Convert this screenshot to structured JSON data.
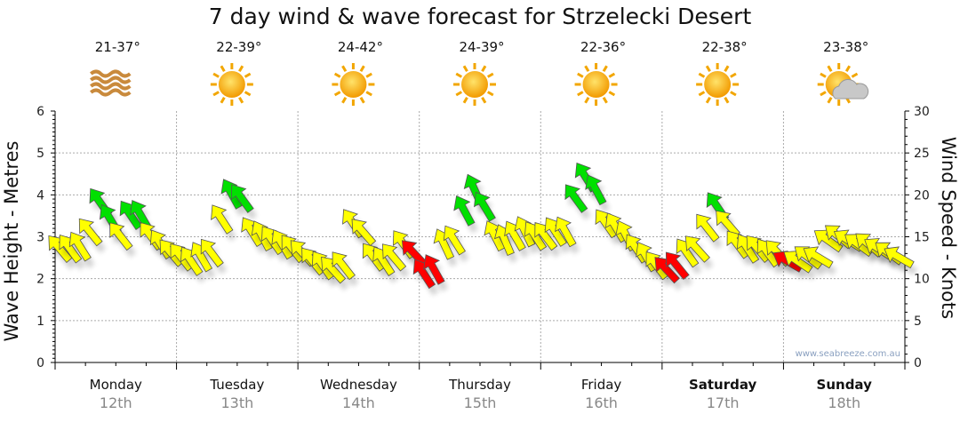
{
  "chart_data": {
    "type": "scatter",
    "title": "7 day wind & wave forecast for Strzelecki Desert",
    "ylabel": "Wave Height - Metres",
    "y2label": "Wind Speed - Knots",
    "ylim": [
      0,
      6
    ],
    "y2lim": [
      0,
      30
    ],
    "yticks": [
      "0",
      "1",
      "2",
      "3",
      "4",
      "5",
      "6"
    ],
    "y2ticks": [
      "0",
      "5",
      "10",
      "15",
      "20",
      "25",
      "30"
    ],
    "grid": true,
    "watermark": "www.seabreeze.com.au",
    "colors": {
      "y": "#ffff00",
      "g": "#00e000",
      "r": "#ff0000"
    },
    "days": [
      {
        "name": "Monday",
        "date": "12th",
        "bold": false,
        "temp": "21-37°",
        "icon": "haze-icon",
        "wave": [
          2.7,
          2.7,
          2.75,
          3.1,
          3.8,
          3.4,
          3.0,
          3.5,
          3.5,
          3.0,
          2.8,
          2.6
        ],
        "rating": "yyyyggyggyyy",
        "dir": -35
      },
      {
        "name": "Tuesday",
        "date": "13th",
        "bold": false,
        "temp": "22-39°",
        "icon": "sun-icon",
        "wave": [
          2.5,
          2.4,
          2.5,
          2.6,
          3.4,
          4.0,
          3.9,
          3.1,
          3.0,
          2.9,
          2.8,
          2.7
        ],
        "rating": "yyyyyggyyyyy",
        "dir": -33
      },
      {
        "name": "Wednesday",
        "date": "14th",
        "bold": false,
        "temp": "24-42°",
        "icon": "sun-icon",
        "wave": [
          2.6,
          2.4,
          2.3,
          2.2,
          2.3,
          3.3,
          3.1,
          2.5,
          2.4,
          2.5,
          2.8,
          2.6
        ],
        "rating": "yyyyyyyyyyyr",
        "dir": -38
      },
      {
        "name": "Thursday",
        "date": "15th",
        "bold": false,
        "temp": "24-39°",
        "icon": "sun-icon",
        "wave": [
          2.1,
          2.2,
          2.8,
          2.9,
          3.6,
          4.1,
          3.7,
          3.0,
          2.9,
          3.0,
          3.1,
          3.0
        ],
        "rating": "rryygggyyyyy",
        "dir": -28
      },
      {
        "name": "Friday",
        "date": "16th",
        "bold": false,
        "temp": "22-36°",
        "icon": "sun-icon",
        "wave": [
          3.0,
          3.1,
          3.1,
          3.9,
          4.4,
          4.1,
          3.3,
          3.2,
          3.0,
          2.7,
          2.5,
          2.3
        ],
        "rating": "yyygggyyyyyy",
        "dir": -32
      },
      {
        "name": "Saturday",
        "date": "17th",
        "bold": true,
        "temp": "22-38°",
        "icon": "sun-icon",
        "wave": [
          2.2,
          2.3,
          2.6,
          2.7,
          3.2,
          3.7,
          3.3,
          2.8,
          2.7,
          2.7,
          2.6,
          2.6
        ],
        "rating": "rryyygyyyyyy",
        "dir": -38
      },
      {
        "name": "Sunday",
        "date": "18th",
        "bold": true,
        "temp": "23-38°",
        "icon": "cloud-sun-icon",
        "wave": [
          2.4,
          2.4,
          2.5,
          2.5,
          2.9,
          3.0,
          2.9,
          2.8,
          2.8,
          2.7,
          2.6,
          2.5
        ],
        "rating": "ryyyyyyyyyyy",
        "dir": -55
      }
    ]
  }
}
